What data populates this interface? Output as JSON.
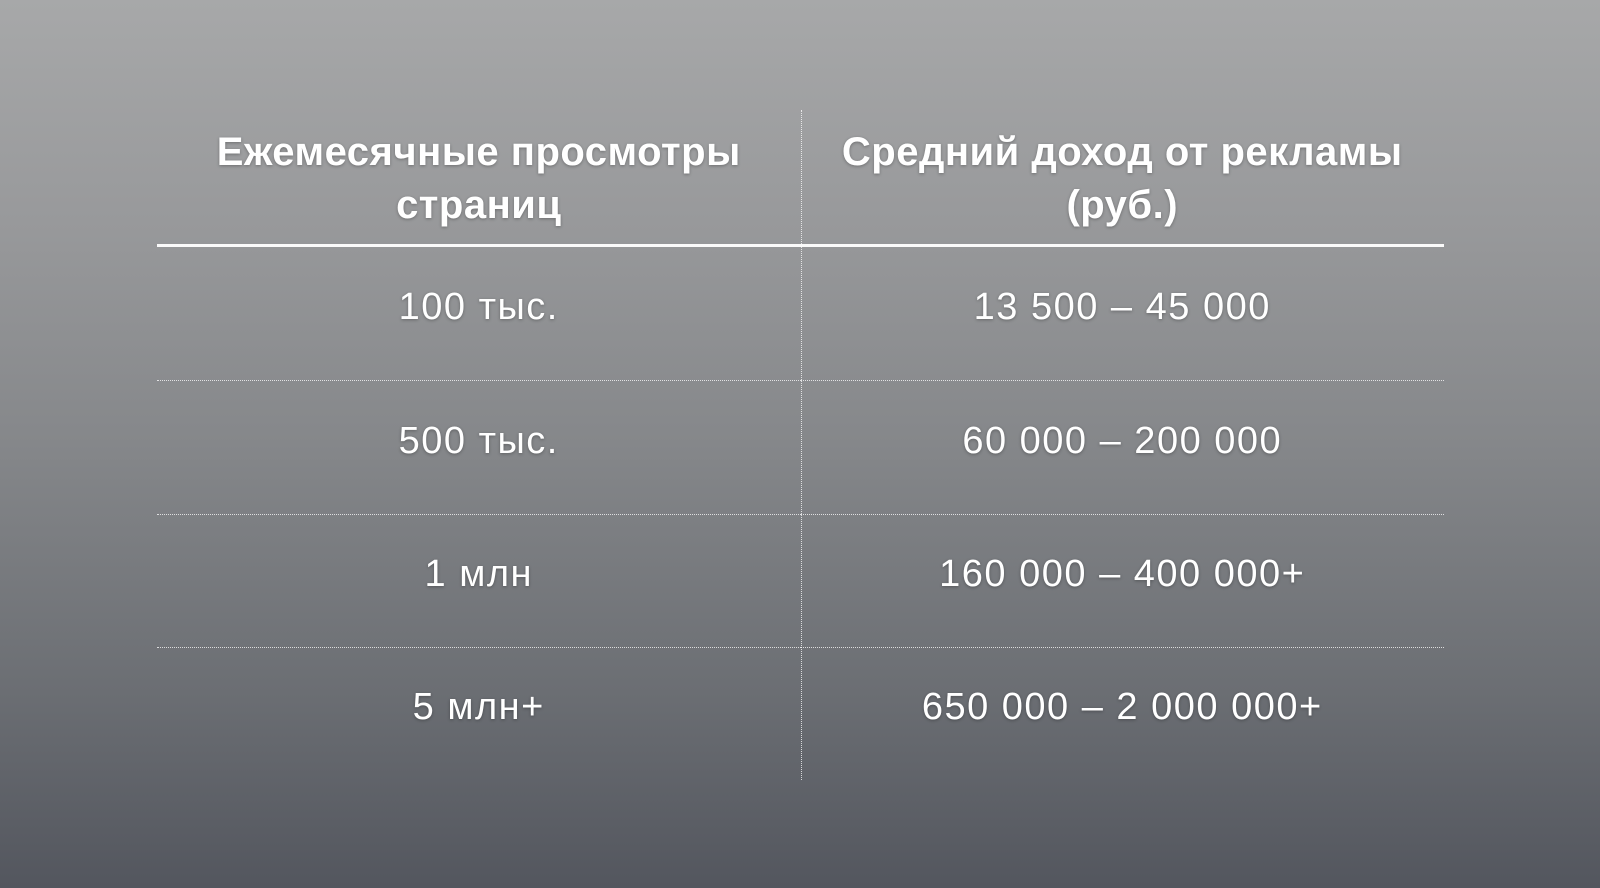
{
  "chart_data": {
    "type": "table",
    "title": "",
    "columns": [
      "Ежемесячные просмотры страниц",
      "Средний доход от рекламы (руб.)"
    ],
    "rows": [
      [
        "100 тыс.",
        "13 500 – 45 000"
      ],
      [
        "500 тыс.",
        "60 000 – 200 000"
      ],
      [
        "1 млн",
        "160 000 – 400 000+"
      ],
      [
        "5 млн+",
        "650 000 – 2 000 000+"
      ]
    ],
    "layout_hints": {
      "header_divider": "solid",
      "row_dividers": "dotted",
      "column_divider": "dotted",
      "text_align": "center"
    }
  },
  "colors": {
    "background_top": "#a7a8a9",
    "background_bottom": "#53565e",
    "text": "#ffffff",
    "divider": "#ffffff"
  }
}
